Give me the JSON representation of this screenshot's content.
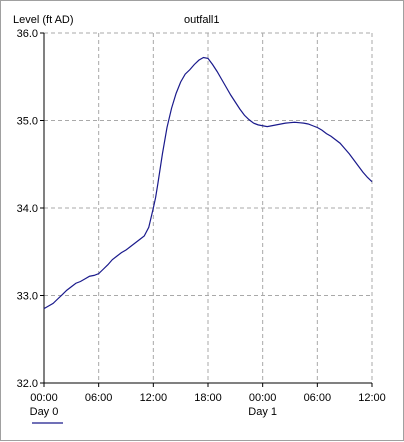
{
  "header": {
    "y_axis_title": "Level (ft AD)",
    "chart_title": "outfall1"
  },
  "colors": {
    "line": "#1a1a8c",
    "grid": "#a9a9a9",
    "axis": "#000000",
    "background": "#ffffff",
    "frame": "#a0a0a0"
  },
  "chart_data": {
    "type": "line",
    "title": "outfall1",
    "xlabel": "",
    "ylabel": "Level (ft AD)",
    "x_unit": "hours",
    "xlim": [
      0,
      36
    ],
    "ylim": [
      32.0,
      36.0
    ],
    "grid": true,
    "legend": "bottom-left",
    "x_ticks": [
      {
        "x": 0,
        "label": "00:00"
      },
      {
        "x": 6,
        "label": "06:00"
      },
      {
        "x": 12,
        "label": "12:00"
      },
      {
        "x": 18,
        "label": "18:00"
      },
      {
        "x": 24,
        "label": "00:00"
      },
      {
        "x": 30,
        "label": "06:00"
      },
      {
        "x": 36,
        "label": "12:00"
      }
    ],
    "day_labels": [
      {
        "x": 0,
        "label": "Day 0"
      },
      {
        "x": 24,
        "label": "Day 1"
      }
    ],
    "y_ticks": [
      {
        "y": 32.0,
        "label": "32.0"
      },
      {
        "y": 33.0,
        "label": "33.0"
      },
      {
        "y": 34.0,
        "label": "34.0"
      },
      {
        "y": 35.0,
        "label": "35.0"
      },
      {
        "y": 36.0,
        "label": "36.0"
      }
    ],
    "series": [
      {
        "x": [
          0,
          0.5,
          1,
          1.5,
          2,
          2.5,
          3,
          3.5,
          4,
          4.5,
          5,
          5.5,
          6,
          6.5,
          7,
          7.5,
          8,
          8.5,
          9,
          9.5,
          10,
          10.5,
          11,
          11.5,
          12,
          12.25,
          12.5,
          13,
          13.5,
          14,
          14.5,
          15,
          15.5,
          16,
          16.5,
          17,
          17.5,
          18,
          18.5,
          19,
          19.5,
          20,
          20.5,
          21,
          21.5,
          22,
          22.5,
          23,
          23.5,
          24,
          24.5,
          25,
          25.5,
          26,
          26.5,
          27,
          27.5,
          28,
          28.5,
          29,
          29.5,
          30,
          30.5,
          31,
          31.5,
          32,
          32.5,
          33,
          33.5,
          34,
          34.5,
          35,
          35.5,
          36
        ],
        "values": [
          32.85,
          32.88,
          32.91,
          32.96,
          33.01,
          33.06,
          33.1,
          33.14,
          33.16,
          33.19,
          33.22,
          33.23,
          33.25,
          33.3,
          33.35,
          33.41,
          33.45,
          33.49,
          33.52,
          33.56,
          33.6,
          33.64,
          33.68,
          33.78,
          34.0,
          34.12,
          34.28,
          34.62,
          34.92,
          35.14,
          35.31,
          35.44,
          35.53,
          35.58,
          35.64,
          35.69,
          35.72,
          35.71,
          35.64,
          35.56,
          35.47,
          35.38,
          35.29,
          35.21,
          35.13,
          35.06,
          35.01,
          34.97,
          34.95,
          34.94,
          34.93,
          34.94,
          34.95,
          34.96,
          34.97,
          34.975,
          34.98,
          34.975,
          34.97,
          34.96,
          34.94,
          34.92,
          34.89,
          34.85,
          34.82,
          34.78,
          34.74,
          34.68,
          34.62,
          34.55,
          34.48,
          34.41,
          34.35,
          34.3
        ]
      }
    ]
  }
}
